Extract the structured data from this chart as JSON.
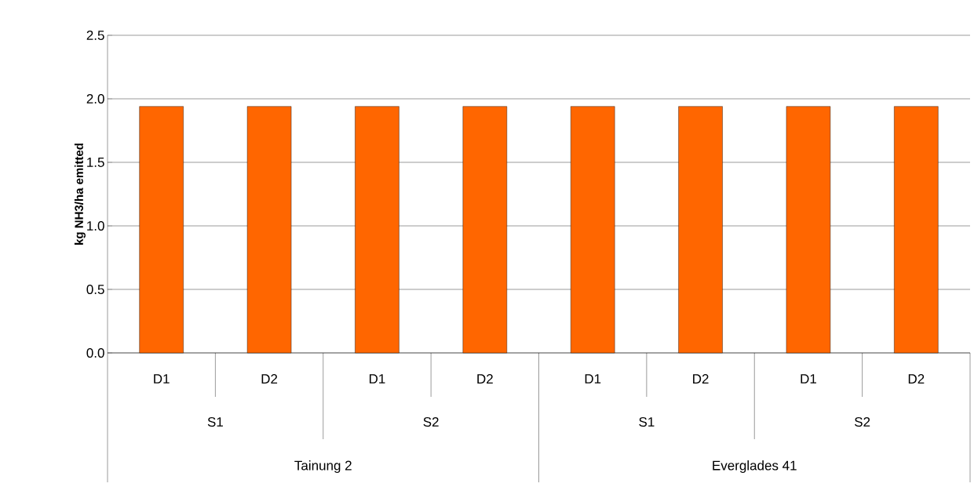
{
  "chart_data": {
    "type": "bar",
    "ylabel": "kg NH3/ha emitted",
    "categories": [
      "D1",
      "D2",
      "D1",
      "D2",
      "D1",
      "D2",
      "D1",
      "D2"
    ],
    "values": [
      1.94,
      1.94,
      1.94,
      1.94,
      1.94,
      1.94,
      1.94,
      1.94
    ],
    "color": "#ff6600",
    "ylim": [
      0,
      2.5
    ],
    "yticks": [
      {
        "value": 0,
        "label": "0.0"
      },
      0.5,
      {
        "value": 1,
        "label": "1.0"
      },
      1.5,
      {
        "value": 2,
        "label": "2.0"
      },
      2.5
    ],
    "grid": "y",
    "annotations": [
      "S1",
      "S2",
      "S1",
      "S2",
      "Tainung 2",
      "Everglades 41"
    ]
  }
}
